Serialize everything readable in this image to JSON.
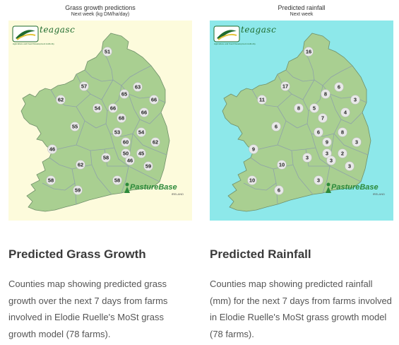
{
  "colors": {
    "land": "#a9cf91",
    "county_border": "#8fa2a8",
    "left_background": "#fdfbdc",
    "right_background": "#8de8ea",
    "badge_fill": "#e8e8e8",
    "teagasc_green": "#1f6b2e"
  },
  "cards": [
    {
      "id": "grass",
      "map_title": "Grass growth predictions",
      "map_subtitle": "Next week (kg DM/ha/day)",
      "heading": "Predicted Grass Growth",
      "description": "Counties map showing predicted grass growth over the next 7 days from farms involved in Elodie Ruelle's MoSt grass growth model (78 farms).",
      "values": [
        {
          "county": "Donegal",
          "value": "51"
        },
        {
          "county": "Mayo",
          "value": "62"
        },
        {
          "county": "Sligo",
          "value": "57"
        },
        {
          "county": "Fermanagh",
          "value": "65"
        },
        {
          "county": "Tyrone",
          "value": "63"
        },
        {
          "county": "Armagh",
          "value": "66"
        },
        {
          "county": "Leitrim",
          "value": "54"
        },
        {
          "county": "Cavan",
          "value": "66"
        },
        {
          "county": "Monaghan",
          "value": "68"
        },
        {
          "county": "Louth",
          "value": "66"
        },
        {
          "county": "Galway",
          "value": "55"
        },
        {
          "county": "Westmeath",
          "value": "53"
        },
        {
          "county": "Meath",
          "value": "54"
        },
        {
          "county": "Offaly",
          "value": "60"
        },
        {
          "county": "Dublin",
          "value": "62"
        },
        {
          "county": "Clare",
          "value": "46"
        },
        {
          "county": "Laois",
          "value": "50"
        },
        {
          "county": "Kildare",
          "value": "45"
        },
        {
          "county": "Tipperary",
          "value": "58"
        },
        {
          "county": "Limerick",
          "value": "62"
        },
        {
          "county": "Kilkenny",
          "value": "46"
        },
        {
          "county": "Wicklow",
          "value": "59"
        },
        {
          "county": "Kerry",
          "value": "58"
        },
        {
          "county": "Waterford",
          "value": "58"
        },
        {
          "county": "Cork",
          "value": "59"
        }
      ]
    },
    {
      "id": "rain",
      "map_title": "Predicted rainfall",
      "map_subtitle": "Next week",
      "heading": "Predicted Rainfall",
      "description": "Counties map showing predicted rainfall (mm) for the next 7 days from farms involved in Elodie Ruelle's MoSt grass growth model (78 farms).",
      "values": [
        {
          "county": "Donegal",
          "value": "16"
        },
        {
          "county": "Sligo",
          "value": "17"
        },
        {
          "county": "Mayo",
          "value": "11"
        },
        {
          "county": "Fermanagh",
          "value": "8"
        },
        {
          "county": "Tyrone",
          "value": "6"
        },
        {
          "county": "Armagh",
          "value": "3"
        },
        {
          "county": "Leitrim",
          "value": "8"
        },
        {
          "county": "Cavan",
          "value": "5"
        },
        {
          "county": "Monaghan",
          "value": "7"
        },
        {
          "county": "Louth",
          "value": "4"
        },
        {
          "county": "Westmeath",
          "value": "6"
        },
        {
          "county": "Meath",
          "value": "8"
        },
        {
          "county": "Offaly",
          "value": "9"
        },
        {
          "county": "Dublin",
          "value": "3"
        },
        {
          "county": "Galway",
          "value": "6"
        },
        {
          "county": "Laois",
          "value": "3"
        },
        {
          "county": "Kildare",
          "value": "2"
        },
        {
          "county": "Wicklow",
          "value": "3"
        },
        {
          "county": "Clare",
          "value": "9"
        },
        {
          "county": "Limerick",
          "value": "10"
        },
        {
          "county": "Tipperary",
          "value": "3"
        },
        {
          "county": "Kilkenny",
          "value": "3"
        },
        {
          "county": "Kerry",
          "value": "10"
        },
        {
          "county": "Cork",
          "value": "6"
        },
        {
          "county": "Waterford",
          "value": "3"
        }
      ]
    }
  ],
  "logos": {
    "teagasc": {
      "brand": "teagasc",
      "tagline": "Agriculture and Food Development Authority",
      "icon": "teagasc-swoosh-icon"
    },
    "pasturebase": {
      "brand": "PastureBase",
      "sub": "IRELAND",
      "icon": "pasturebase-figure-icon"
    }
  }
}
